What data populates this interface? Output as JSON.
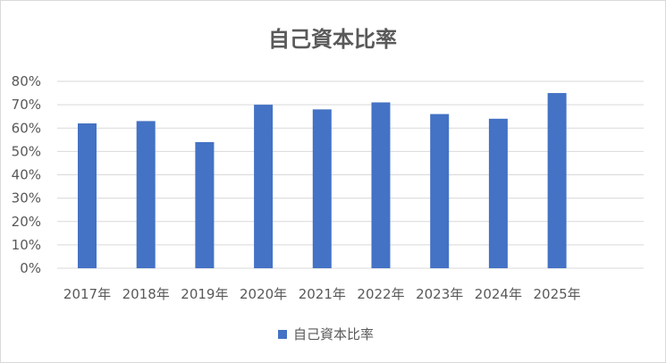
{
  "chart_data": {
    "type": "bar",
    "title": "自己資本比率",
    "categories": [
      "2017年",
      "2018年",
      "2019年",
      "2020年",
      "2021年",
      "2022年",
      "2023年",
      "2024年",
      "2025年"
    ],
    "series": [
      {
        "name": "自己資本比率",
        "values": [
          0.62,
          0.63,
          0.54,
          0.7,
          0.68,
          0.71,
          0.66,
          0.64,
          0.75
        ],
        "color": "#4472c4"
      }
    ],
    "ylim": [
      0,
      0.8
    ],
    "yticks": [
      {
        "value": 0.0,
        "label": "0%"
      },
      {
        "value": 0.1,
        "label": "10%"
      },
      {
        "value": 0.2,
        "label": "20%"
      },
      {
        "value": 0.3,
        "label": "30%"
      },
      {
        "value": 0.4,
        "label": "40%"
      },
      {
        "value": 0.5,
        "label": "50%"
      },
      {
        "value": 0.6,
        "label": "60%"
      },
      {
        "value": 0.7,
        "label": "70%"
      },
      {
        "value": 0.8,
        "label": "80%"
      }
    ],
    "grid": true,
    "legend": "bottom",
    "colors": {
      "bar": "#4472c4",
      "grid": "#d9d9d9",
      "text": "#595959"
    }
  }
}
